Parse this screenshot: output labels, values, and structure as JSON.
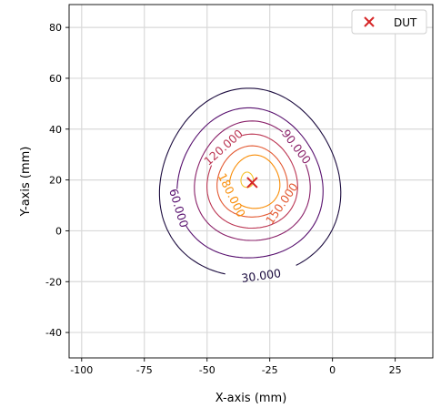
{
  "chart_data": {
    "type": "contour",
    "xlabel": "X-axis (mm)",
    "ylabel": "Y-axis (mm)",
    "xlim": [
      -105,
      40
    ],
    "ylim": [
      -50,
      89
    ],
    "xticks": [
      -100,
      -75,
      -50,
      -25,
      0,
      25
    ],
    "yticks": [
      -40,
      -20,
      0,
      20,
      40,
      60,
      80
    ],
    "grid": true,
    "legend": {
      "position": "top-right",
      "entries": [
        "DUT"
      ]
    },
    "marker": {
      "label": "DUT",
      "x": -32,
      "y": 19,
      "symbol": "x",
      "color": "#d62728"
    },
    "contours": [
      {
        "level": 30,
        "label": "30.000",
        "color": "#1c0c3f",
        "center": [
          -33,
          18
        ],
        "radius": [
          36,
          37
        ],
        "gap_deg": [
          254,
          301
        ]
      },
      {
        "level": 60,
        "label": "60.000",
        "color": "#57106e",
        "center": [
          -33,
          18
        ],
        "radius": [
          29,
          29.5
        ],
        "gap_deg": [
          183,
          212
        ]
      },
      {
        "level": 90,
        "label": "90.000",
        "color": "#8a226a",
        "center": [
          -32,
          19
        ],
        "radius": [
          23,
          23.5
        ],
        "gap_deg": [
          18,
          58
        ]
      },
      {
        "level": 120,
        "label": "120.000",
        "color": "#bc3754",
        "center": [
          -32,
          19
        ],
        "radius": [
          18,
          18.5
        ],
        "gap_deg": [
          103,
          158
        ]
      },
      {
        "level": 150,
        "label": "150.000",
        "color": "#e35932",
        "center": [
          -32,
          19
        ],
        "radius": [
          14,
          14
        ],
        "gap_deg": [
          302,
          348
        ]
      },
      {
        "level": 180,
        "label": "180.000",
        "color": "#f98e09",
        "center": [
          -31,
          19
        ],
        "radius": [
          10,
          10.5
        ],
        "gap_deg": [
          180,
          235
        ]
      },
      {
        "level": 210,
        "label": "",
        "color": "#f4c22b",
        "center": [
          -34,
          20
        ],
        "radius": [
          2.5,
          3
        ],
        "gap_deg": null
      }
    ]
  }
}
